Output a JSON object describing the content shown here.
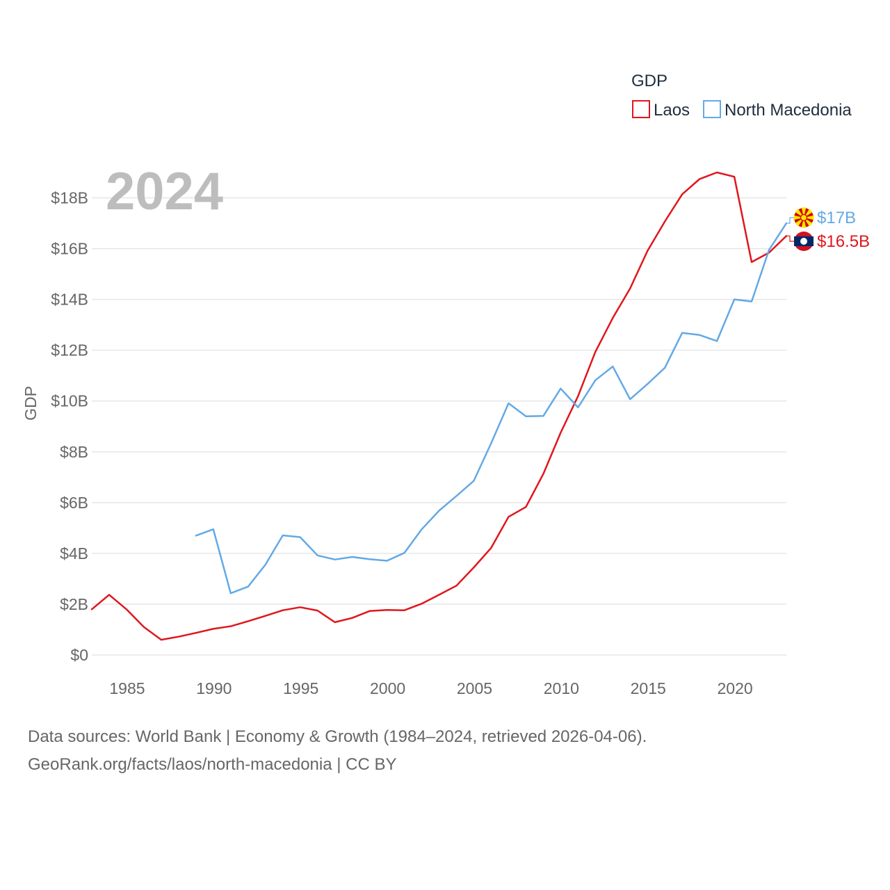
{
  "chart_data": {
    "type": "line",
    "year_label": "2024",
    "legend_title": "GDP",
    "ylabel": "GDP",
    "xlim": [
      1984,
      2024
    ],
    "ylim": [
      0,
      19
    ],
    "x_ticks": [
      1985,
      1990,
      1995,
      2000,
      2005,
      2010,
      2015,
      2020
    ],
    "x_tick_labels": [
      "1985",
      "1990",
      "1995",
      "2000",
      "2005",
      "2010",
      "2015",
      "2020"
    ],
    "y_ticks": [
      0,
      2,
      4,
      6,
      8,
      10,
      12,
      14,
      16,
      18
    ],
    "y_tick_labels": [
      "$0",
      "$2B",
      "$4B",
      "$6B",
      "$8B",
      "$10B",
      "$12B",
      "$14B",
      "$16B",
      "$18B"
    ],
    "series": [
      {
        "name": "Laos",
        "color": "#e0161d",
        "end_label": "$16.5B",
        "flag": "laos-flag-icon",
        "x": [
          1984,
          1985,
          1986,
          1987,
          1988,
          1989,
          1990,
          1991,
          1992,
          1993,
          1994,
          1995,
          1996,
          1997,
          1998,
          1999,
          2000,
          2001,
          2002,
          2003,
          2004,
          2005,
          2006,
          2007,
          2008,
          2009,
          2010,
          2011,
          2012,
          2013,
          2014,
          2015,
          2016,
          2017,
          2018,
          2019,
          2020,
          2021,
          2022,
          2023,
          2024
        ],
        "values": [
          1.8,
          2.37,
          1.8,
          1.1,
          0.6,
          0.72,
          0.87,
          1.03,
          1.13,
          1.33,
          1.54,
          1.76,
          1.88,
          1.75,
          1.29,
          1.46,
          1.73,
          1.77,
          1.76,
          2.02,
          2.37,
          2.73,
          3.45,
          4.22,
          5.44,
          5.83,
          7.13,
          8.75,
          10.19,
          11.94,
          13.27,
          14.43,
          15.91,
          17.07,
          18.14,
          18.74,
          19.0,
          18.83,
          15.47,
          15.84,
          16.5
        ]
      },
      {
        "name": "North Macedonia",
        "color": "#63a9e6",
        "end_label": "$17B",
        "flag": "north-macedonia-flag-icon",
        "x": [
          1990,
          1991,
          1992,
          1993,
          1994,
          1995,
          1996,
          1997,
          1998,
          1999,
          2000,
          2001,
          2002,
          2003,
          2004,
          2005,
          2006,
          2007,
          2008,
          2009,
          2010,
          2011,
          2012,
          2013,
          2014,
          2015,
          2016,
          2017,
          2018,
          2019,
          2020,
          2021,
          2022,
          2023,
          2024
        ],
        "values": [
          4.7,
          4.95,
          2.43,
          2.69,
          3.56,
          4.71,
          4.64,
          3.92,
          3.76,
          3.86,
          3.77,
          3.71,
          4.02,
          4.95,
          5.68,
          6.26,
          6.86,
          8.34,
          9.91,
          9.4,
          9.41,
          10.49,
          9.75,
          10.82,
          11.36,
          10.07,
          10.67,
          11.31,
          12.68,
          12.6,
          12.36,
          14.0,
          13.92,
          15.95,
          17.0
        ]
      }
    ]
  },
  "footer": {
    "line1": "Data sources: World Bank | Economy & Growth (1984–2024, retrieved 2026-04-06).",
    "line2": "GeoRank.org/facts/laos/north-macedonia | CC BY"
  }
}
